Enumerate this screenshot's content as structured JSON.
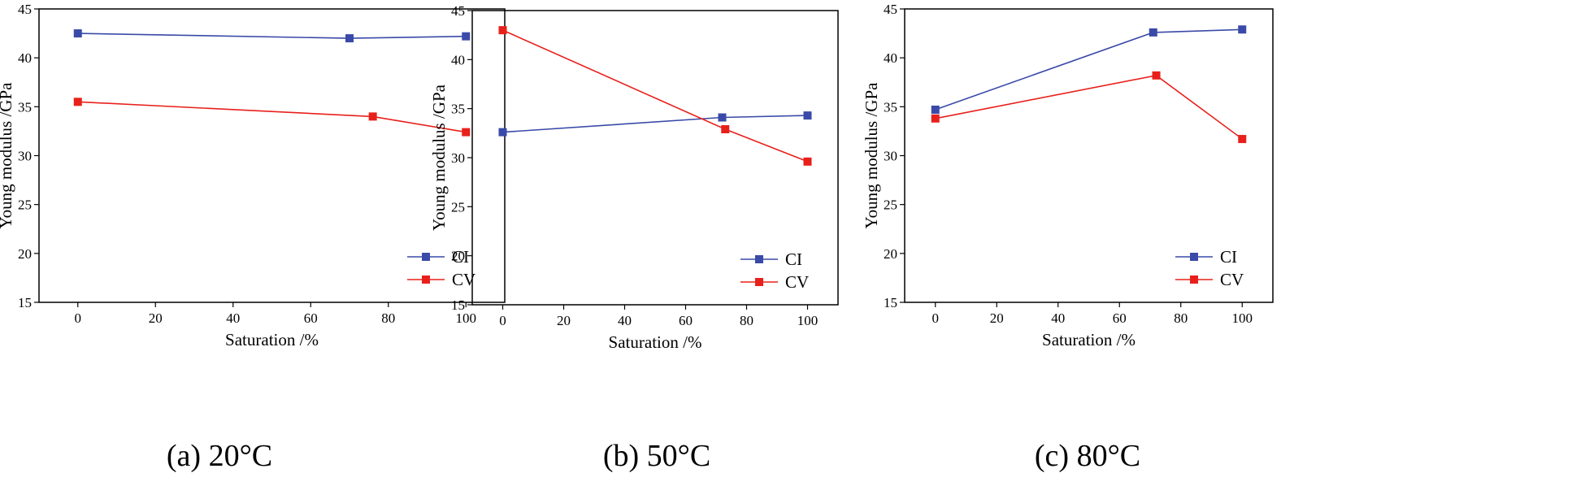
{
  "chart_data": [
    {
      "type": "line",
      "caption": "(a) 20°C",
      "xlabel": "Saturation /%",
      "ylabel": "Young modulus /GPa",
      "xlim": [
        -10,
        110
      ],
      "ylim": [
        15,
        45
      ],
      "xticks": [
        0,
        20,
        40,
        60,
        80,
        100
      ],
      "yticks": [
        15,
        20,
        25,
        30,
        35,
        40,
        45
      ],
      "legend_position": "bottom-right",
      "series": [
        {
          "name": "CI",
          "color": "#3a4aa8",
          "x": [
            0,
            70,
            100
          ],
          "y": [
            42.5,
            42.0,
            42.2
          ]
        },
        {
          "name": "CV",
          "color": "#e8201b",
          "x": [
            0,
            76,
            100
          ],
          "y": [
            35.5,
            34.0,
            32.4
          ]
        }
      ]
    },
    {
      "type": "line",
      "caption": "(b) 50°C",
      "xlabel": "Saturation /%",
      "ylabel": "Young modulus /GPa",
      "xlim": [
        -10,
        110
      ],
      "ylim": [
        15,
        45
      ],
      "xticks": [
        0,
        20,
        40,
        60,
        80,
        100
      ],
      "yticks": [
        15,
        20,
        25,
        30,
        35,
        40,
        45
      ],
      "legend_position": "bottom-right",
      "series": [
        {
          "name": "CI",
          "color": "#3a4aa8",
          "x": [
            0,
            72,
            100
          ],
          "y": [
            32.6,
            34.1,
            34.3
          ]
        },
        {
          "name": "CV",
          "color": "#e8201b",
          "x": [
            0,
            73,
            100
          ],
          "y": [
            43.0,
            32.9,
            29.6
          ]
        }
      ]
    },
    {
      "type": "line",
      "caption": "(c) 80°C",
      "xlabel": "Saturation /%",
      "ylabel": "Young modulus /GPa",
      "xlim": [
        -10,
        110
      ],
      "ylim": [
        15,
        45
      ],
      "xticks": [
        0,
        20,
        40,
        60,
        80,
        100
      ],
      "yticks": [
        15,
        20,
        25,
        30,
        35,
        40,
        45
      ],
      "legend_position": "bottom-right",
      "series": [
        {
          "name": "CI",
          "color": "#3a4aa8",
          "x": [
            0,
            71,
            100
          ],
          "y": [
            34.7,
            42.6,
            42.9
          ]
        },
        {
          "name": "CV",
          "color": "#e8201b",
          "x": [
            0,
            72,
            100
          ],
          "y": [
            33.8,
            38.2,
            31.7
          ]
        }
      ]
    }
  ]
}
